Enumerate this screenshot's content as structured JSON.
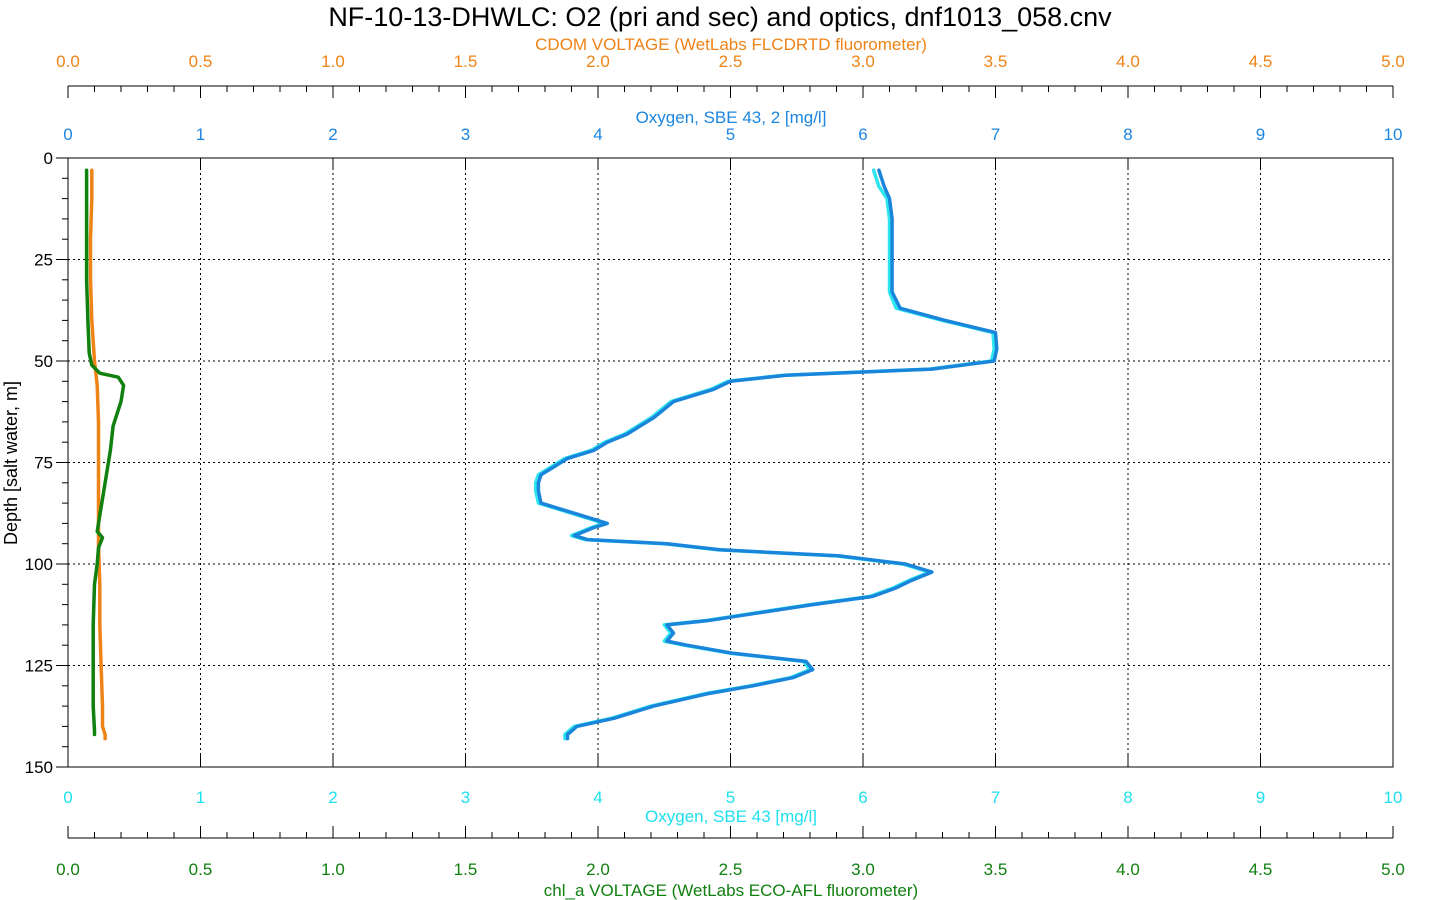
{
  "chart_data": {
    "type": "line",
    "title": "NF-10-13-DHWLC: O2 (pri and sec) and optics, dnf1013_058.cnv",
    "ylabel": "Depth [salt water, m]",
    "ylim": [
      0,
      150
    ],
    "y_inverted": true,
    "y_ticks": [
      0,
      25,
      50,
      75,
      100,
      125,
      150
    ],
    "grid": true,
    "axes": {
      "cdom": {
        "label": "CDOM VOLTAGE (WetLabs FLCDRTD fluorometer)",
        "position": "top-outer",
        "range": [
          0,
          5
        ],
        "ticks": [
          "0.0",
          "0.5",
          "1.0",
          "1.5",
          "2.0",
          "2.5",
          "3.0",
          "3.5",
          "4.0",
          "4.5",
          "5.0"
        ],
        "color": "#ee8317"
      },
      "oxygen2": {
        "label": "Oxygen, SBE 43, 2 [mg/l]",
        "position": "top-inner",
        "range": [
          0,
          10
        ],
        "ticks": [
          "0",
          "1",
          "2",
          "3",
          "4",
          "5",
          "6",
          "7",
          "8",
          "9",
          "10"
        ],
        "color": "#1c86e0"
      },
      "oxygen": {
        "label": "Oxygen, SBE 43 [mg/l]",
        "position": "bottom-inner",
        "range": [
          0,
          10
        ],
        "ticks": [
          "0",
          "1",
          "2",
          "3",
          "4",
          "5",
          "6",
          "7",
          "8",
          "9",
          "10"
        ],
        "color": "#1ee0ee"
      },
      "chla": {
        "label": "chl_a VOLTAGE (WetLabs ECO-AFL fluorometer)",
        "position": "bottom-outer",
        "range": [
          0,
          5
        ],
        "ticks": [
          "0.0",
          "0.5",
          "1.0",
          "1.5",
          "2.0",
          "2.5",
          "3.0",
          "3.5",
          "4.0",
          "4.5",
          "5.0"
        ],
        "color": "#10800f"
      }
    },
    "series": [
      {
        "axis": "oxygen",
        "color": "#2ee6f0",
        "points": [
          [
            6.08,
            3
          ],
          [
            6.12,
            7
          ],
          [
            6.18,
            10
          ],
          [
            6.2,
            15
          ],
          [
            6.2,
            25
          ],
          [
            6.2,
            33
          ],
          [
            6.25,
            37
          ],
          [
            6.6,
            40
          ],
          [
            6.98,
            43
          ],
          [
            6.99,
            47
          ],
          [
            6.97,
            50
          ],
          [
            6.5,
            52
          ],
          [
            5.4,
            53.5
          ],
          [
            4.98,
            55
          ],
          [
            4.85,
            57
          ],
          [
            4.55,
            60
          ],
          [
            4.4,
            64
          ],
          [
            4.2,
            68
          ],
          [
            4.05,
            70
          ],
          [
            3.95,
            72
          ],
          [
            3.75,
            74
          ],
          [
            3.65,
            76
          ],
          [
            3.55,
            78
          ],
          [
            3.53,
            80
          ],
          [
            3.53,
            82
          ],
          [
            3.55,
            85
          ],
          [
            3.75,
            87
          ],
          [
            3.95,
            89
          ],
          [
            4.05,
            90
          ],
          [
            3.95,
            91
          ],
          [
            3.8,
            93
          ],
          [
            3.9,
            94
          ],
          [
            4.5,
            95
          ],
          [
            4.9,
            96.5
          ],
          [
            5.8,
            98
          ],
          [
            6.3,
            100
          ],
          [
            6.5,
            102
          ],
          [
            6.35,
            104
          ],
          [
            6.22,
            106
          ],
          [
            6.05,
            108
          ],
          [
            5.6,
            110
          ],
          [
            5.2,
            112
          ],
          [
            4.8,
            114
          ],
          [
            4.5,
            115
          ],
          [
            4.55,
            117
          ],
          [
            4.5,
            119
          ],
          [
            4.65,
            120
          ],
          [
            5.0,
            122
          ],
          [
            5.55,
            124
          ],
          [
            5.6,
            126
          ],
          [
            5.45,
            128
          ],
          [
            5.15,
            130
          ],
          [
            4.8,
            132
          ],
          [
            4.4,
            135
          ],
          [
            4.1,
            138
          ],
          [
            3.82,
            140
          ],
          [
            3.75,
            142
          ],
          [
            3.75,
            143
          ]
        ]
      },
      {
        "axis": "oxygen2",
        "color": "#1a86db",
        "points": [
          [
            6.12,
            3
          ],
          [
            6.16,
            7
          ],
          [
            6.2,
            10
          ],
          [
            6.22,
            15
          ],
          [
            6.22,
            25
          ],
          [
            6.22,
            33
          ],
          [
            6.28,
            37
          ],
          [
            6.62,
            40
          ],
          [
            7.0,
            43
          ],
          [
            7.01,
            47
          ],
          [
            6.99,
            50
          ],
          [
            6.52,
            52
          ],
          [
            5.42,
            53.5
          ],
          [
            5.0,
            55
          ],
          [
            4.87,
            57
          ],
          [
            4.57,
            60
          ],
          [
            4.42,
            64
          ],
          [
            4.22,
            68
          ],
          [
            4.07,
            70
          ],
          [
            3.97,
            72
          ],
          [
            3.77,
            74
          ],
          [
            3.67,
            76
          ],
          [
            3.57,
            78
          ],
          [
            3.55,
            80
          ],
          [
            3.55,
            82
          ],
          [
            3.57,
            85
          ],
          [
            3.77,
            87
          ],
          [
            3.97,
            89
          ],
          [
            4.07,
            90
          ],
          [
            3.97,
            91
          ],
          [
            3.82,
            93
          ],
          [
            3.92,
            94
          ],
          [
            4.52,
            95
          ],
          [
            4.92,
            96.5
          ],
          [
            5.82,
            98
          ],
          [
            6.32,
            100
          ],
          [
            6.52,
            102
          ],
          [
            6.37,
            104
          ],
          [
            6.24,
            106
          ],
          [
            6.07,
            108
          ],
          [
            5.62,
            110
          ],
          [
            5.22,
            112
          ],
          [
            4.82,
            114
          ],
          [
            4.52,
            115
          ],
          [
            4.57,
            117
          ],
          [
            4.52,
            119
          ],
          [
            4.67,
            120
          ],
          [
            5.02,
            122
          ],
          [
            5.57,
            124
          ],
          [
            5.62,
            126
          ],
          [
            5.47,
            128
          ],
          [
            5.17,
            130
          ],
          [
            4.82,
            132
          ],
          [
            4.42,
            135
          ],
          [
            4.12,
            138
          ],
          [
            3.84,
            140
          ],
          [
            3.77,
            142
          ],
          [
            3.77,
            143
          ]
        ]
      },
      {
        "axis": "cdom",
        "color": "#ee8317",
        "points": [
          [
            0.09,
            3
          ],
          [
            0.09,
            10
          ],
          [
            0.085,
            20
          ],
          [
            0.085,
            30
          ],
          [
            0.09,
            40
          ],
          [
            0.1,
            50
          ],
          [
            0.11,
            56
          ],
          [
            0.115,
            65
          ],
          [
            0.115,
            75
          ],
          [
            0.115,
            85
          ],
          [
            0.115,
            95
          ],
          [
            0.12,
            105
          ],
          [
            0.12,
            115
          ],
          [
            0.125,
            125
          ],
          [
            0.13,
            135
          ],
          [
            0.13,
            140
          ],
          [
            0.14,
            142
          ],
          [
            0.14,
            143
          ]
        ]
      },
      {
        "axis": "chla",
        "color": "#10800f",
        "points": [
          [
            0.07,
            3
          ],
          [
            0.07,
            10
          ],
          [
            0.07,
            20
          ],
          [
            0.07,
            30
          ],
          [
            0.075,
            40
          ],
          [
            0.08,
            48
          ],
          [
            0.09,
            51
          ],
          [
            0.12,
            53
          ],
          [
            0.19,
            54
          ],
          [
            0.21,
            56
          ],
          [
            0.2,
            60
          ],
          [
            0.17,
            66
          ],
          [
            0.16,
            72
          ],
          [
            0.14,
            80
          ],
          [
            0.12,
            88
          ],
          [
            0.11,
            92
          ],
          [
            0.13,
            93.5
          ],
          [
            0.115,
            96
          ],
          [
            0.11,
            100
          ],
          [
            0.1,
            105
          ],
          [
            0.095,
            115
          ],
          [
            0.095,
            125
          ],
          [
            0.095,
            135
          ],
          [
            0.1,
            141
          ],
          [
            0.1,
            142
          ]
        ]
      }
    ]
  }
}
